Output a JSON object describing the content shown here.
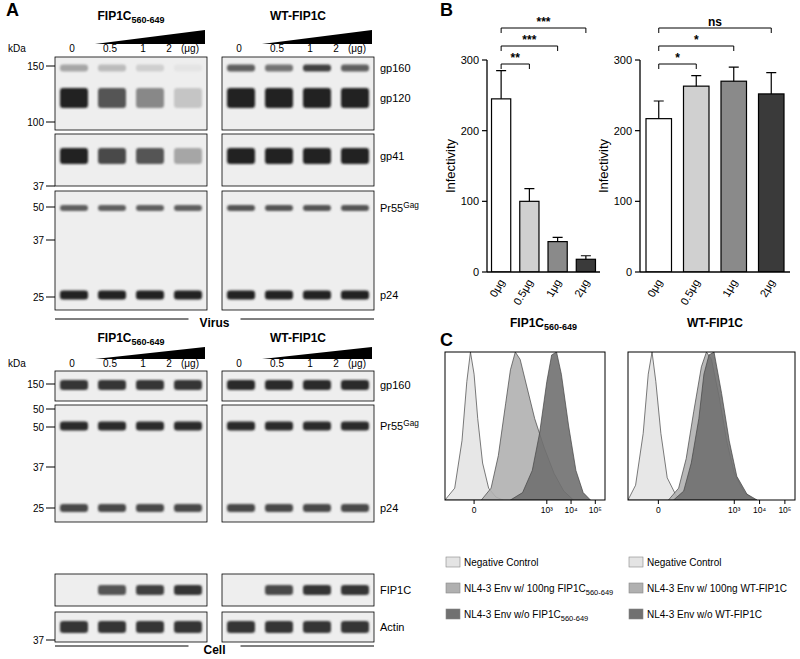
{
  "panel_labels": [
    "A",
    "B",
    "C"
  ],
  "blots": {
    "unit_label": "kDa",
    "doses": [
      "0",
      "0.5",
      "1",
      "2"
    ],
    "dose_unit": "(μg)",
    "sections": [
      {
        "name": "Virus",
        "groups": [
          "FIP1C560-649",
          "WT-FIP1C"
        ],
        "panels": [
          {
            "markers": [
              150,
              100
            ],
            "bands": [
              {
                "label": "gp160",
                "intensity": [
                  [
                    0.35,
                    0.25,
                    0.15,
                    0.05
                  ],
                  [
                    0.7,
                    0.6,
                    0.85,
                    0.7
                  ]
                ]
              },
              {
                "label": "gp120",
                "intensity": [
                  [
                    1,
                    0.75,
                    0.5,
                    0.2
                  ],
                  [
                    1,
                    1,
                    1,
                    1
                  ]
                ]
              }
            ]
          },
          {
            "markers": [
              37
            ],
            "bands": [
              {
                "label": "gp41",
                "intensity": [
                  [
                    1,
                    0.8,
                    0.75,
                    0.35
                  ],
                  [
                    1,
                    1,
                    1,
                    1
                  ]
                ]
              }
            ]
          },
          {
            "markers": [
              50,
              37,
              25
            ],
            "bands": [
              {
                "label": "Pr55Gag",
                "intensity": [
                  [
                    0.7,
                    0.7,
                    0.7,
                    0.7
                  ],
                  [
                    0.75,
                    0.75,
                    0.75,
                    0.75
                  ]
                ]
              },
              {
                "label": "p24",
                "intensity": [
                  [
                    1,
                    1,
                    1,
                    1
                  ],
                  [
                    1,
                    1,
                    1,
                    1
                  ]
                ]
              }
            ]
          }
        ]
      },
      {
        "name": "Cell",
        "groups": [
          "FIP1C560-649",
          "WT-FIP1C"
        ],
        "panels": [
          {
            "markers": [
              150
            ],
            "bands": [
              {
                "label": "gp160",
                "intensity": [
                  [
                    0.9,
                    0.9,
                    0.9,
                    0.9
                  ],
                  [
                    0.95,
                    0.95,
                    0.95,
                    0.95
                  ]
                ]
              }
            ]
          },
          {
            "markers": [
              50,
              50,
              37,
              25
            ],
            "bands": [
              {
                "label": "Pr55Gag",
                "intensity": [
                  [
                    0.95,
                    0.95,
                    0.95,
                    0.95
                  ],
                  [
                    0.95,
                    0.95,
                    0.95,
                    0.95
                  ]
                ]
              },
              {
                "label": "p24",
                "intensity": [
                  [
                    0.8,
                    0.8,
                    0.8,
                    0.8
                  ],
                  [
                    0.8,
                    0.8,
                    0.8,
                    0.8
                  ]
                ]
              }
            ]
          },
          {
            "markers": [],
            "bands": [
              {
                "label": "FIP1C",
                "intensity": [
                  [
                    0,
                    0.75,
                    0.85,
                    0.9
                  ],
                  [
                    0,
                    0.8,
                    0.9,
                    0.9
                  ]
                ]
              }
            ]
          },
          {
            "markers": [
              37
            ],
            "bands": [
              {
                "label": "Actin",
                "intensity": [
                  [
                    0.9,
                    0.9,
                    0.9,
                    0.9
                  ],
                  [
                    0.9,
                    0.9,
                    0.9,
                    0.9
                  ]
                ]
              }
            ]
          }
        ]
      }
    ]
  },
  "chart_data": [
    {
      "type": "bar",
      "categories": [
        "0μg",
        "0.5μg",
        "1μg",
        "2μg"
      ],
      "values": [
        245,
        100,
        43,
        18
      ],
      "errors": [
        40,
        18,
        6,
        5
      ],
      "colors": [
        "#ffffff",
        "#d0d0d0",
        "#8a8a8a",
        "#3a3a3a"
      ],
      "ylabel": "Infectivity",
      "xlabel": "FIP1C560-649",
      "ylim": [
        0,
        300
      ],
      "yticks": [
        0,
        100,
        200,
        300
      ],
      "grid": false,
      "annotations": [
        {
          "from": 0,
          "to": 1,
          "label": "**"
        },
        {
          "from": 0,
          "to": 2,
          "label": "***"
        },
        {
          "from": 0,
          "to": 3,
          "label": "***"
        }
      ]
    },
    {
      "type": "bar",
      "categories": [
        "0μg",
        "0.5μg",
        "1μg",
        "2μg"
      ],
      "values": [
        217,
        263,
        270,
        252
      ],
      "errors": [
        25,
        15,
        20,
        30
      ],
      "colors": [
        "#ffffff",
        "#d0d0d0",
        "#8a8a8a",
        "#3a3a3a"
      ],
      "ylabel": "Infectivity",
      "xlabel": "WT-FIP1C",
      "ylim": [
        0,
        300
      ],
      "yticks": [
        0,
        100,
        200,
        300
      ],
      "grid": false,
      "annotations": [
        {
          "from": 0,
          "to": 1,
          "label": "*"
        },
        {
          "from": 0,
          "to": 2,
          "label": "*"
        },
        {
          "from": 0,
          "to": 3,
          "label": "ns"
        }
      ]
    },
    {
      "type": "area",
      "xlim": [
        -1.2,
        5.4
      ],
      "xticks": [
        0,
        {
          "value": 3,
          "label": "10³"
        },
        {
          "value": 4,
          "label": "10⁴"
        },
        {
          "value": 5,
          "label": "10⁵"
        }
      ],
      "ylim": [
        0,
        100
      ],
      "tick_labels": "x",
      "grid": false,
      "legend": "bottom",
      "series": [
        {
          "name": "Negative Control",
          "color": "#e4e4e4",
          "x": [
            -1.2,
            -0.8,
            -0.5,
            -0.3,
            -0.15,
            0,
            0.15,
            0.35,
            0.6,
            0.9,
            1.2
          ],
          "values": [
            0,
            8,
            40,
            80,
            100,
            85,
            55,
            25,
            8,
            2,
            0
          ]
        },
        {
          "name": "NL4-3 Env w/ 100ng FIP1C560-649",
          "color": "#b0b0b0",
          "x": [
            0.3,
            0.7,
            1.0,
            1.3,
            1.5,
            1.7,
            1.9,
            2.2,
            2.5,
            2.9,
            3.3,
            3.7,
            4.1
          ],
          "values": [
            0,
            8,
            30,
            65,
            88,
            100,
            95,
            75,
            55,
            35,
            18,
            6,
            0
          ]
        },
        {
          "name": "NL4-3 Env w/o FIP1C560-649",
          "color": "#707070",
          "x": [
            1.5,
            2.0,
            2.4,
            2.7,
            3.0,
            3.2,
            3.4,
            3.6,
            3.9,
            4.2,
            4.5,
            4.8
          ],
          "values": [
            0,
            5,
            20,
            45,
            80,
            98,
            100,
            85,
            50,
            20,
            5,
            0
          ]
        }
      ]
    },
    {
      "type": "area",
      "xlim": [
        -1.2,
        5.4
      ],
      "xticks": [
        0,
        {
          "value": 3,
          "label": "10³"
        },
        {
          "value": 4,
          "label": "10⁴"
        },
        {
          "value": 5,
          "label": "10⁵"
        }
      ],
      "ylim": [
        0,
        100
      ],
      "tick_labels": "x",
      "grid": false,
      "legend": "bottom",
      "series": [
        {
          "name": "Negative Control",
          "color": "#e4e4e4",
          "x": [
            -1.2,
            -0.9,
            -0.6,
            -0.4,
            -0.25,
            -0.1,
            0.1,
            0.35,
            0.7,
            1.0
          ],
          "values": [
            0,
            10,
            45,
            85,
            100,
            80,
            45,
            15,
            3,
            0
          ]
        },
        {
          "name": "NL4-3 Env w/ 100ng WT-FIP1C",
          "color": "#b0b0b0",
          "x": [
            0.4,
            0.8,
            1.1,
            1.4,
            1.7,
            1.9,
            2.1,
            2.4,
            2.7,
            3.0,
            3.4,
            3.8
          ],
          "values": [
            0,
            8,
            28,
            60,
            90,
            100,
            95,
            70,
            40,
            18,
            5,
            0
          ]
        },
        {
          "name": "NL4-3 Env w/o WT-FIP1C",
          "color": "#707070",
          "x": [
            0.6,
            1.0,
            1.3,
            1.6,
            1.8,
            2.0,
            2.2,
            2.5,
            2.8,
            3.1,
            3.5,
            3.9
          ],
          "values": [
            0,
            6,
            25,
            55,
            85,
            98,
            100,
            72,
            40,
            16,
            4,
            0
          ]
        }
      ]
    }
  ]
}
